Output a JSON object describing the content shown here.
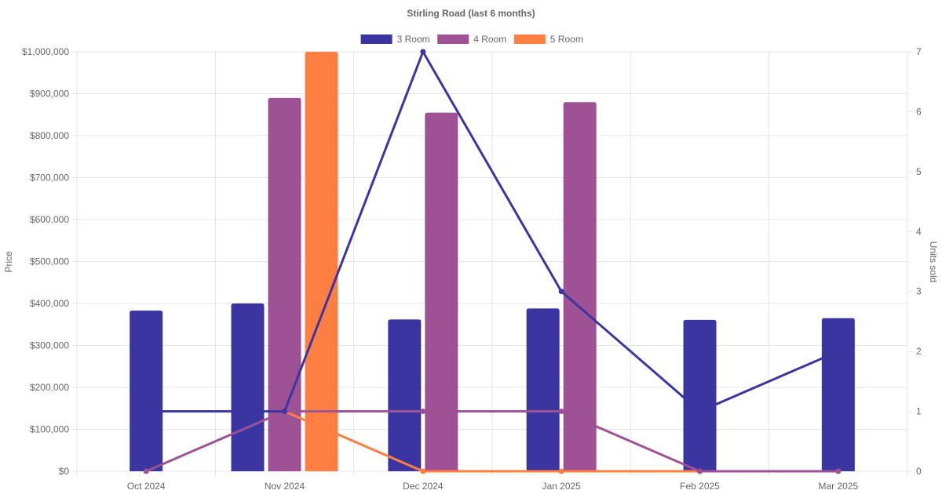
{
  "chart_data": {
    "type": "bar",
    "title": "Stirling Road (last 6 months)",
    "categories": [
      "Oct 2024",
      "Nov 2024",
      "Dec 2024",
      "Jan 2025",
      "Feb 2025",
      "Mar 2025"
    ],
    "y_left": {
      "label": "Price",
      "min": 0,
      "max": 1000000,
      "step": 100000,
      "tick_labels": [
        "$0",
        "$100,000",
        "$200,000",
        "$300,000",
        "$400,000",
        "$500,000",
        "$600,000",
        "$700,000",
        "$800,000",
        "$900,000",
        "$1,000,000"
      ]
    },
    "y_right": {
      "label": "Units sold",
      "min": 0,
      "max": 7,
      "step": 1,
      "tick_labels": [
        "0",
        "1",
        "2",
        "3",
        "4",
        "5",
        "6",
        "7"
      ]
    },
    "legend_position": "top-center",
    "grid": true,
    "series": [
      {
        "name": "3 Room",
        "color": "#3a35a0",
        "price": [
          383000,
          400000,
          362000,
          388000,
          361000,
          365000
        ],
        "units": [
          1,
          1,
          7,
          3,
          1,
          2
        ]
      },
      {
        "name": "4 Room",
        "color": "#9e5195",
        "price": [
          null,
          890000,
          855000,
          880000,
          null,
          null
        ],
        "units": [
          0,
          1,
          1,
          1,
          0,
          0
        ]
      },
      {
        "name": "5 Room",
        "color": "#ff7f42",
        "price": [
          null,
          1000000,
          null,
          null,
          null,
          null
        ],
        "units": [
          null,
          1,
          0,
          0,
          0,
          null
        ]
      }
    ]
  }
}
